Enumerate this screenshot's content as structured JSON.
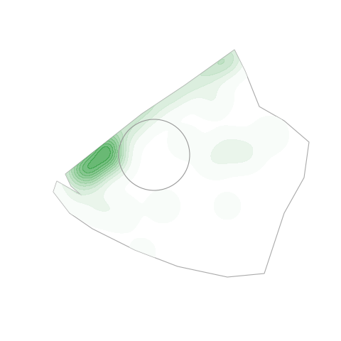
{
  "chart_data": {
    "type": "density",
    "color": "#2e9e3e",
    "tick_labels": false,
    "xlim": [
      0,
      480
    ],
    "ylim": [
      480,
      0
    ],
    "xticks": [],
    "yticks": [],
    "x": [
      105,
      120,
      135,
      150,
      158,
      175,
      195,
      215,
      240,
      265,
      290,
      310,
      325,
      128,
      150,
      300,
      320,
      345,
      380,
      300,
      230,
      140,
      200,
      320,
      260,
      110,
      170
    ],
    "y": [
      240,
      235,
      225,
      210,
      225,
      180,
      160,
      145,
      130,
      115,
      100,
      88,
      78,
      245,
      200,
      140,
      210,
      215,
      190,
      225,
      290,
      290,
      355,
      290,
      200,
      270,
      300
    ],
    "values": [
      0.6,
      0.8,
      0.9,
      0.9,
      0.8,
      0.6,
      0.55,
      0.5,
      0.55,
      0.5,
      0.5,
      0.55,
      0.5,
      0.7,
      0.8,
      0.25,
      0.3,
      0.3,
      0.2,
      0.2,
      0.15,
      0.25,
      0.1,
      0.1,
      0.15,
      0.3,
      0.2
    ]
  }
}
